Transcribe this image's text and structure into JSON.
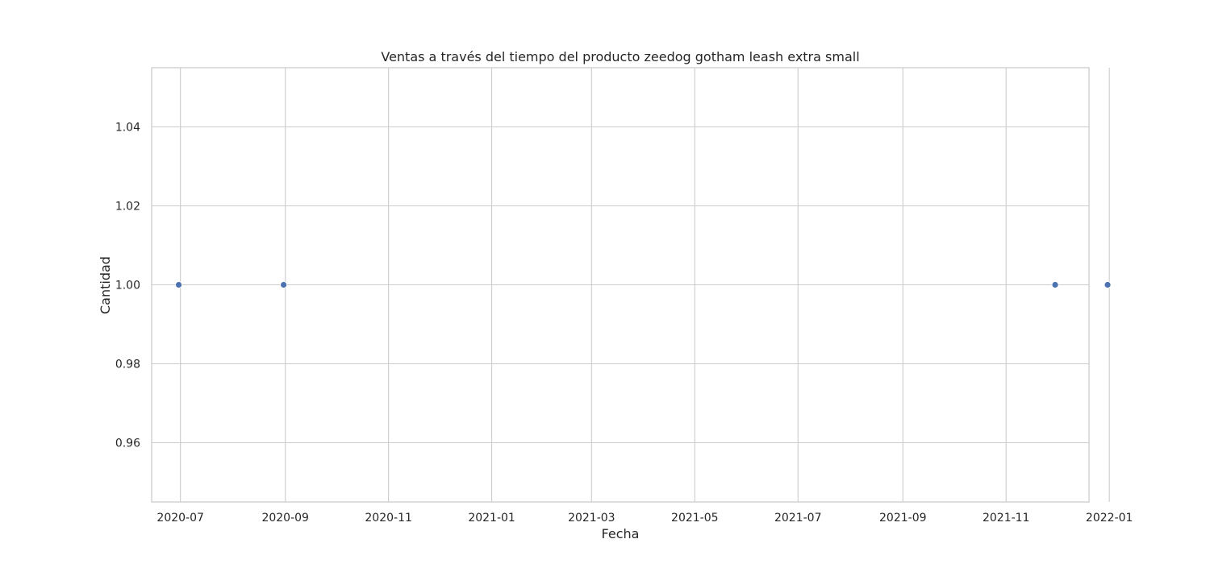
{
  "chart_data": {
    "type": "scatter",
    "title": "Ventas a través del tiempo del producto zeedog gotham leash extra small",
    "xlabel": "Fecha",
    "ylabel": "Cantidad",
    "x_type": "date",
    "xlim": [
      "2020-06-14",
      "2021-12-20"
    ],
    "ylim": [
      0.945,
      1.055
    ],
    "x_ticks": [
      "2020-07",
      "2020-09",
      "2020-11",
      "2021-01",
      "2021-03",
      "2021-05",
      "2021-07",
      "2021-09",
      "2021-11",
      "2022-01"
    ],
    "y_ticks": [
      0.96,
      0.98,
      1.0,
      1.02,
      1.04
    ],
    "y_tick_labels": [
      "0.96",
      "0.98",
      "1.00",
      "1.02",
      "1.04"
    ],
    "grid": true,
    "series": [
      {
        "color": "#4c72b0",
        "points": [
          {
            "x": "2020-06-30",
            "y": 1.0
          },
          {
            "x": "2020-08-31",
            "y": 1.0
          },
          {
            "x": "2021-11-30",
            "y": 1.0
          },
          {
            "x": "2021-12-31",
            "y": 1.0
          }
        ]
      }
    ]
  }
}
